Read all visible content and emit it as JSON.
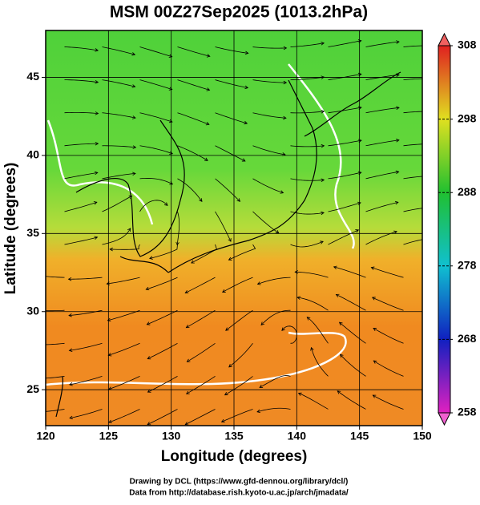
{
  "chart_data": {
    "type": "map",
    "title": "MSM 00Z27Sep2025 (1013.2hPa)",
    "x_label": "Longitude (degrees)",
    "y_label": "Latitude  (degrees)",
    "xlim": [
      120,
      150
    ],
    "xticks": [
      120,
      125,
      130,
      135,
      140,
      145,
      150
    ],
    "ylim": [
      22.7,
      48.0
    ],
    "yticks": [
      25,
      30,
      35,
      40,
      45
    ],
    "grid": true,
    "colorbar": {
      "lim": [
        258,
        308
      ],
      "ticks": [
        258,
        268,
        278,
        288,
        298,
        308
      ]
    },
    "credits": [
      "Drawing by DCL (https://www.gfd-dennou.org/library/dcl/)",
      "Data from http://database.rish.kyoto-u.ac.jp/arch/jmadata/"
    ]
  }
}
